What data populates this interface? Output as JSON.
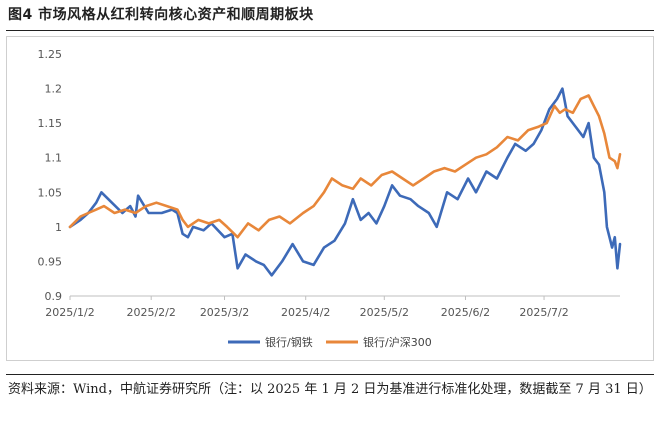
{
  "figure": {
    "title": "图4 市场风格从红利转向核心资产和顺周期板块",
    "source": "资料来源：Wind，中航证券研究所（注：以 2025 年 1 月 2 日为基准进行标准化处理，数据截至 7 月 31 日）"
  },
  "chart_data": {
    "type": "line",
    "title": "",
    "xlabel": "",
    "ylabel": "",
    "x_start": "2025-01-02",
    "x_end": "2025-07-31",
    "x_tick_labels": [
      "2025/1/2",
      "2025/2/2",
      "2025/3/2",
      "2025/4/2",
      "2025/5/2",
      "2025/6/2",
      "2025/7/2"
    ],
    "x_tick_dates": [
      "2025-01-02",
      "2025-02-02",
      "2025-03-02",
      "2025-04-02",
      "2025-05-02",
      "2025-06-02",
      "2025-07-02"
    ],
    "y_ticks": [
      "0.9",
      "0.95",
      "1",
      "1.05",
      "1.1",
      "1.15",
      "1.2",
      "1.25"
    ],
    "ylim": [
      0.9,
      1.25
    ],
    "grid": false,
    "legend_position": "bottom",
    "series": [
      {
        "name": "银行/钢铁",
        "color": "#3d6ab8",
        "points": [
          [
            "2025-01-02",
            1.0
          ],
          [
            "2025-01-06",
            1.01
          ],
          [
            "2025-01-09",
            1.02
          ],
          [
            "2025-01-12",
            1.035
          ],
          [
            "2025-01-14",
            1.05
          ],
          [
            "2025-01-18",
            1.035
          ],
          [
            "2025-01-22",
            1.02
          ],
          [
            "2025-01-25",
            1.03
          ],
          [
            "2025-01-27",
            1.015
          ],
          [
            "2025-01-28",
            1.045
          ],
          [
            "2025-02-01",
            1.02
          ],
          [
            "2025-02-06",
            1.02
          ],
          [
            "2025-02-10",
            1.025
          ],
          [
            "2025-02-12",
            1.02
          ],
          [
            "2025-02-14",
            0.99
          ],
          [
            "2025-02-16",
            0.985
          ],
          [
            "2025-02-18",
            1.0
          ],
          [
            "2025-02-22",
            0.995
          ],
          [
            "2025-02-25",
            1.005
          ],
          [
            "2025-03-02",
            0.985
          ],
          [
            "2025-03-05",
            0.99
          ],
          [
            "2025-03-07",
            0.94
          ],
          [
            "2025-03-10",
            0.96
          ],
          [
            "2025-03-14",
            0.95
          ],
          [
            "2025-03-17",
            0.945
          ],
          [
            "2025-03-20",
            0.93
          ],
          [
            "2025-03-24",
            0.95
          ],
          [
            "2025-03-28",
            0.975
          ],
          [
            "2025-04-01",
            0.95
          ],
          [
            "2025-04-05",
            0.945
          ],
          [
            "2025-04-09",
            0.97
          ],
          [
            "2025-04-13",
            0.98
          ],
          [
            "2025-04-17",
            1.005
          ],
          [
            "2025-04-20",
            1.04
          ],
          [
            "2025-04-23",
            1.01
          ],
          [
            "2025-04-26",
            1.02
          ],
          [
            "2025-04-29",
            1.005
          ],
          [
            "2025-05-02",
            1.03
          ],
          [
            "2025-05-05",
            1.06
          ],
          [
            "2025-05-08",
            1.045
          ],
          [
            "2025-05-12",
            1.04
          ],
          [
            "2025-05-15",
            1.03
          ],
          [
            "2025-05-19",
            1.02
          ],
          [
            "2025-05-22",
            1.0
          ],
          [
            "2025-05-26",
            1.05
          ],
          [
            "2025-05-30",
            1.04
          ],
          [
            "2025-06-03",
            1.07
          ],
          [
            "2025-06-06",
            1.05
          ],
          [
            "2025-06-10",
            1.08
          ],
          [
            "2025-06-14",
            1.07
          ],
          [
            "2025-06-18",
            1.1
          ],
          [
            "2025-06-21",
            1.12
          ],
          [
            "2025-06-25",
            1.11
          ],
          [
            "2025-06-28",
            1.12
          ],
          [
            "2025-07-01",
            1.14
          ],
          [
            "2025-07-04",
            1.17
          ],
          [
            "2025-07-07",
            1.185
          ],
          [
            "2025-07-09",
            1.2
          ],
          [
            "2025-07-11",
            1.16
          ],
          [
            "2025-07-14",
            1.145
          ],
          [
            "2025-07-17",
            1.13
          ],
          [
            "2025-07-19",
            1.15
          ],
          [
            "2025-07-21",
            1.1
          ],
          [
            "2025-07-23",
            1.09
          ],
          [
            "2025-07-25",
            1.05
          ],
          [
            "2025-07-26",
            1.0
          ],
          [
            "2025-07-27",
            0.985
          ],
          [
            "2025-07-28",
            0.97
          ],
          [
            "2025-07-29",
            0.985
          ],
          [
            "2025-07-30",
            0.94
          ],
          [
            "2025-07-31",
            0.975
          ]
        ]
      },
      {
        "name": "银行/沪深300",
        "color": "#e8873a",
        "points": [
          [
            "2025-01-02",
            1.0
          ],
          [
            "2025-01-06",
            1.015
          ],
          [
            "2025-01-09",
            1.02
          ],
          [
            "2025-01-12",
            1.025
          ],
          [
            "2025-01-15",
            1.03
          ],
          [
            "2025-01-19",
            1.02
          ],
          [
            "2025-01-23",
            1.025
          ],
          [
            "2025-01-27",
            1.02
          ],
          [
            "2025-01-31",
            1.03
          ],
          [
            "2025-02-04",
            1.035
          ],
          [
            "2025-02-08",
            1.03
          ],
          [
            "2025-02-12",
            1.025
          ],
          [
            "2025-02-14",
            1.01
          ],
          [
            "2025-02-16",
            1.0
          ],
          [
            "2025-02-20",
            1.01
          ],
          [
            "2025-02-24",
            1.005
          ],
          [
            "2025-02-28",
            1.01
          ],
          [
            "2025-03-03",
            1.0
          ],
          [
            "2025-03-07",
            0.985
          ],
          [
            "2025-03-11",
            1.005
          ],
          [
            "2025-03-15",
            0.995
          ],
          [
            "2025-03-19",
            1.01
          ],
          [
            "2025-03-23",
            1.015
          ],
          [
            "2025-03-27",
            1.005
          ],
          [
            "2025-04-01",
            1.02
          ],
          [
            "2025-04-05",
            1.03
          ],
          [
            "2025-04-09",
            1.05
          ],
          [
            "2025-04-12",
            1.07
          ],
          [
            "2025-04-16",
            1.06
          ],
          [
            "2025-04-20",
            1.055
          ],
          [
            "2025-04-23",
            1.07
          ],
          [
            "2025-04-27",
            1.06
          ],
          [
            "2025-05-01",
            1.075
          ],
          [
            "2025-05-05",
            1.08
          ],
          [
            "2025-05-09",
            1.07
          ],
          [
            "2025-05-13",
            1.06
          ],
          [
            "2025-05-17",
            1.07
          ],
          [
            "2025-05-21",
            1.08
          ],
          [
            "2025-05-25",
            1.085
          ],
          [
            "2025-05-29",
            1.08
          ],
          [
            "2025-06-02",
            1.09
          ],
          [
            "2025-06-06",
            1.1
          ],
          [
            "2025-06-10",
            1.105
          ],
          [
            "2025-06-14",
            1.115
          ],
          [
            "2025-06-18",
            1.13
          ],
          [
            "2025-06-22",
            1.125
          ],
          [
            "2025-06-26",
            1.14
          ],
          [
            "2025-06-30",
            1.145
          ],
          [
            "2025-07-03",
            1.15
          ],
          [
            "2025-07-06",
            1.175
          ],
          [
            "2025-07-08",
            1.165
          ],
          [
            "2025-07-10",
            1.17
          ],
          [
            "2025-07-13",
            1.165
          ],
          [
            "2025-07-16",
            1.185
          ],
          [
            "2025-07-19",
            1.19
          ],
          [
            "2025-07-21",
            1.175
          ],
          [
            "2025-07-23",
            1.16
          ],
          [
            "2025-07-25",
            1.135
          ],
          [
            "2025-07-27",
            1.1
          ],
          [
            "2025-07-29",
            1.095
          ],
          [
            "2025-07-30",
            1.085
          ],
          [
            "2025-07-31",
            1.105
          ]
        ]
      }
    ]
  }
}
